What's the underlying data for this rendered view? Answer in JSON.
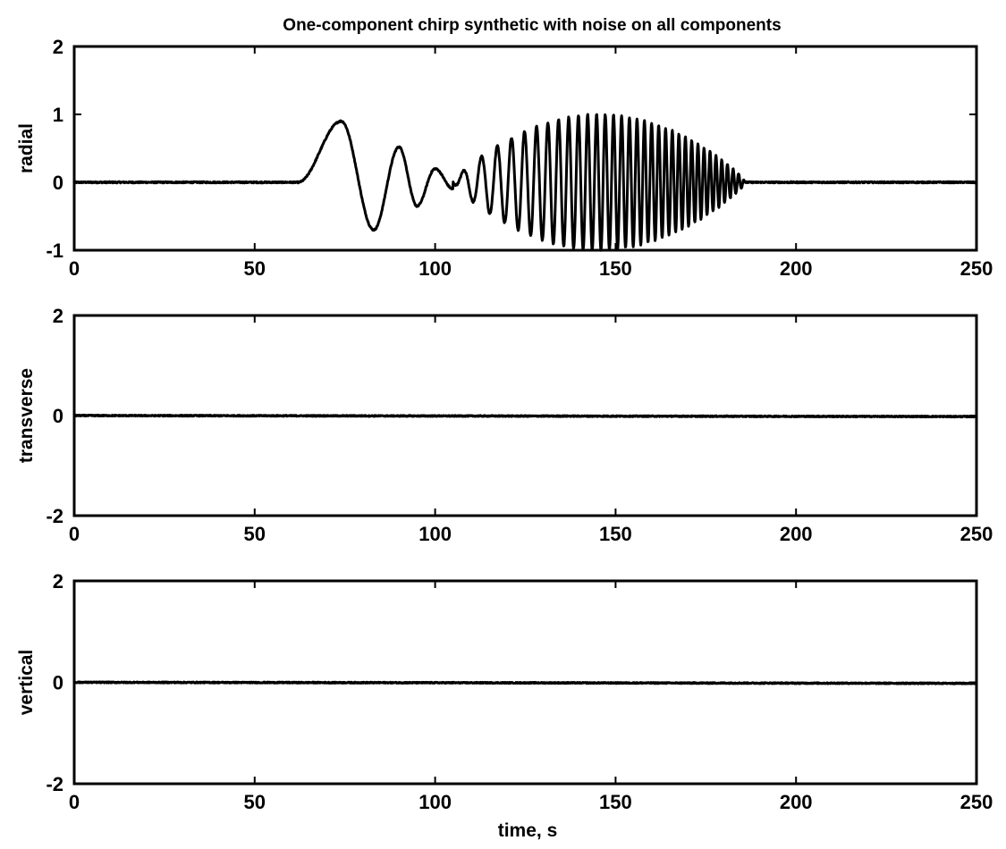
{
  "chart_data": [
    {
      "type": "line",
      "title": "One-component chirp synthetic with noise on all components",
      "ylabel": "radial",
      "xlabel": "",
      "xlim": [
        0,
        250
      ],
      "ylim": [
        -1,
        2
      ],
      "xticks": [
        "0",
        "50",
        "100",
        "150",
        "200",
        "250"
      ],
      "yticks": [
        "-1",
        "0",
        "1",
        "2"
      ],
      "grid": false,
      "signal": {
        "description_values": {
          "baseline": 0,
          "onset_s": 62,
          "end_s": 186,
          "pulse_peaks": [
            [
              74,
              0.9
            ],
            [
              83,
              -0.7
            ],
            [
              90,
              0.52
            ],
            [
              95,
              -0.35
            ],
            [
              100,
              0.2
            ],
            [
              105,
              -0.1
            ]
          ],
          "chirp_start_s": 105,
          "chirp_end_s": 186,
          "chirp_max_amplitude": 1.0,
          "chirp_peak_time_s": 145,
          "chirp_period_start_s": 6,
          "chirp_period_end_s": 1.5
        }
      },
      "noise_amplitude": 0.02
    },
    {
      "type": "line",
      "ylabel": "transverse",
      "xlabel": "",
      "xlim": [
        0,
        250
      ],
      "ylim": [
        -2,
        2
      ],
      "xticks": [
        "0",
        "50",
        "100",
        "150",
        "200",
        "250"
      ],
      "yticks": [
        "-2",
        "0",
        "2"
      ],
      "grid": false,
      "baseline": 0,
      "noise_amplitude": 0.02
    },
    {
      "type": "line",
      "ylabel": "vertical",
      "xlabel": "time, s",
      "xlim": [
        0,
        250
      ],
      "ylim": [
        -2,
        2
      ],
      "xticks": [
        "0",
        "50",
        "100",
        "150",
        "200",
        "250"
      ],
      "yticks": [
        "-2",
        "0",
        "2"
      ],
      "grid": false,
      "baseline": 0,
      "noise_amplitude": 0.02
    }
  ]
}
